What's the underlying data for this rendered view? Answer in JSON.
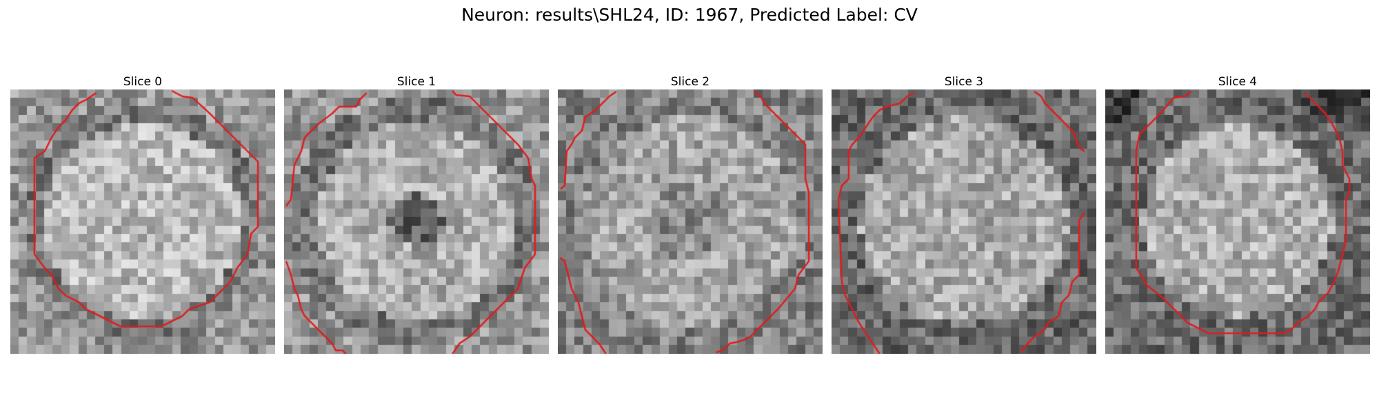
{
  "figure": {
    "suptitle": "Neuron: results\\SHL24, ID: 1967, Predicted Label: CV",
    "contour_color": "#e31a1c",
    "colormap": "gray"
  },
  "slices": [
    {
      "title": "Slice 0",
      "pattern": "bright-disk"
    },
    {
      "title": "Slice 1",
      "pattern": "dark-center"
    },
    {
      "title": "Slice 2",
      "pattern": "textured"
    },
    {
      "title": "Slice 3",
      "pattern": "textured-dark-edges"
    },
    {
      "title": "Slice 4",
      "pattern": "dark-top-corners"
    }
  ]
}
